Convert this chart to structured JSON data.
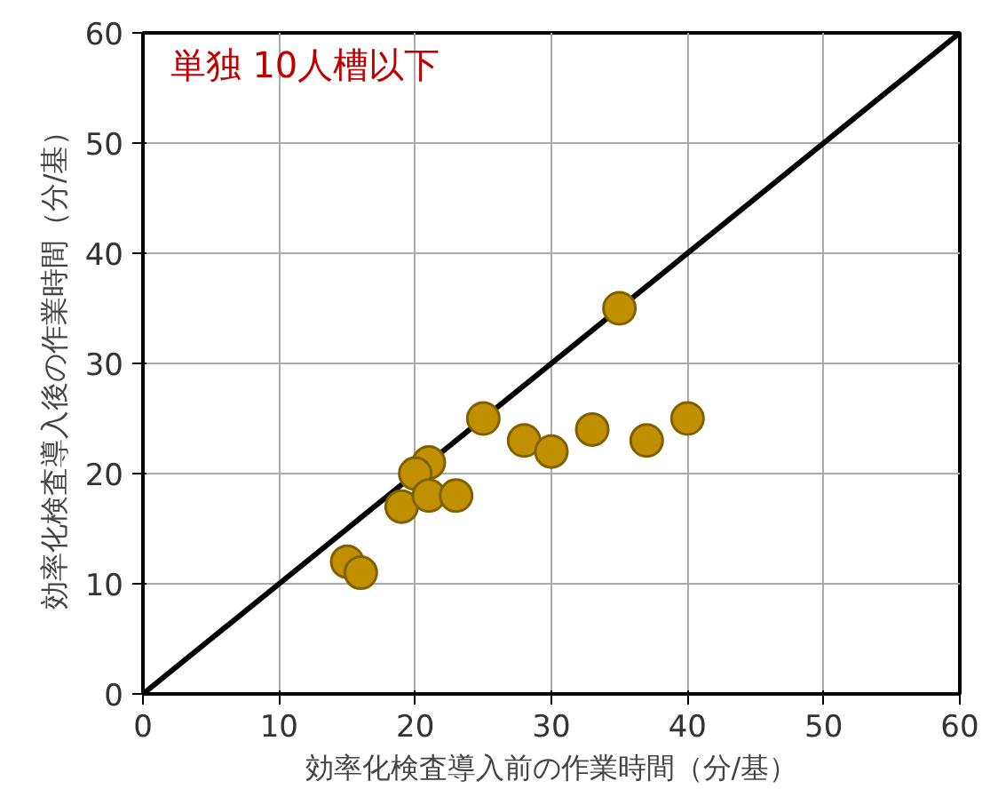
{
  "chart_data": {
    "type": "scatter",
    "xlabel": "効率化検査導入前の作業時間（分/基）",
    "ylabel": "効率化検査導入後の作業時間（分/基）",
    "annotations": [
      "単独 10人槽以下"
    ],
    "xlim": [
      0,
      60
    ],
    "ylim": [
      0,
      60
    ],
    "xticks": [
      0,
      10,
      20,
      30,
      40,
      50,
      60
    ],
    "yticks": [
      0,
      10,
      20,
      30,
      40,
      50,
      60
    ],
    "grid": true,
    "series": [
      {
        "type": "line",
        "color": "#000000",
        "x": [
          0,
          60
        ],
        "values": [
          0,
          60
        ]
      },
      {
        "color": "#c09000",
        "marker": "circle",
        "x": [
          15,
          16,
          19,
          21,
          20,
          21,
          23,
          25,
          28,
          30,
          33,
          35,
          37,
          40
        ],
        "values": [
          12,
          11,
          17,
          21,
          20,
          18,
          18,
          25,
          23,
          22,
          24,
          35,
          23,
          25
        ]
      }
    ]
  }
}
